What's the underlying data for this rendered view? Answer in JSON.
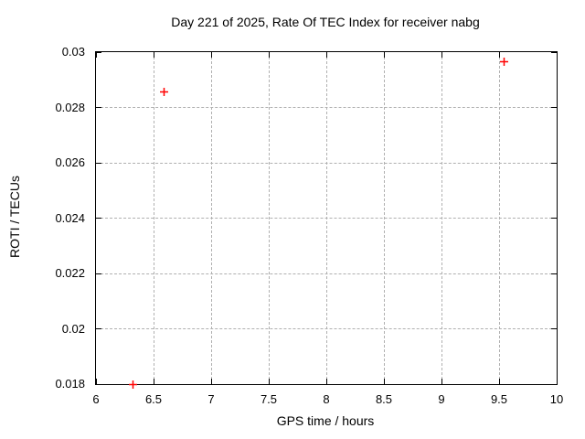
{
  "chart_data": {
    "type": "scatter",
    "title": "Day 221 of 2025, Rate Of TEC Index for receiver nabg",
    "xlabel": "GPS time / hours",
    "ylabel": "ROTI / TECUs",
    "xlim": [
      6,
      10
    ],
    "ylim": [
      0.018,
      0.03
    ],
    "xticks": {
      "values": [
        6,
        6.5,
        7,
        7.5,
        8,
        8.5,
        9,
        9.5,
        10
      ],
      "labels": [
        "6",
        "6.5",
        "7",
        "7.5",
        "8",
        "8.5",
        "9",
        "9.5",
        "10"
      ]
    },
    "yticks": {
      "values": [
        0.018,
        0.02,
        0.022,
        0.024,
        0.026,
        0.028,
        0.03
      ],
      "labels": [
        "0.018",
        "0.02",
        "0.022",
        "0.024",
        "0.026",
        "0.028",
        "0.03"
      ]
    },
    "grid": true,
    "legend_position": "none",
    "marker": {
      "shape": "plus",
      "size": 9,
      "stroke_width": 1.5
    },
    "colors": {
      "marker": "#ff0000",
      "grid": "#b0b0b0",
      "axis": "#000000",
      "text": "#000000",
      "background": "#ffffff"
    },
    "series": [
      {
        "name": "ROTI",
        "points": [
          {
            "x": 6.32,
            "y": 0.0181
          },
          {
            "x": 6.59,
            "y": 0.0287
          },
          {
            "x": 9.54,
            "y": 0.0298
          }
        ]
      }
    ]
  }
}
